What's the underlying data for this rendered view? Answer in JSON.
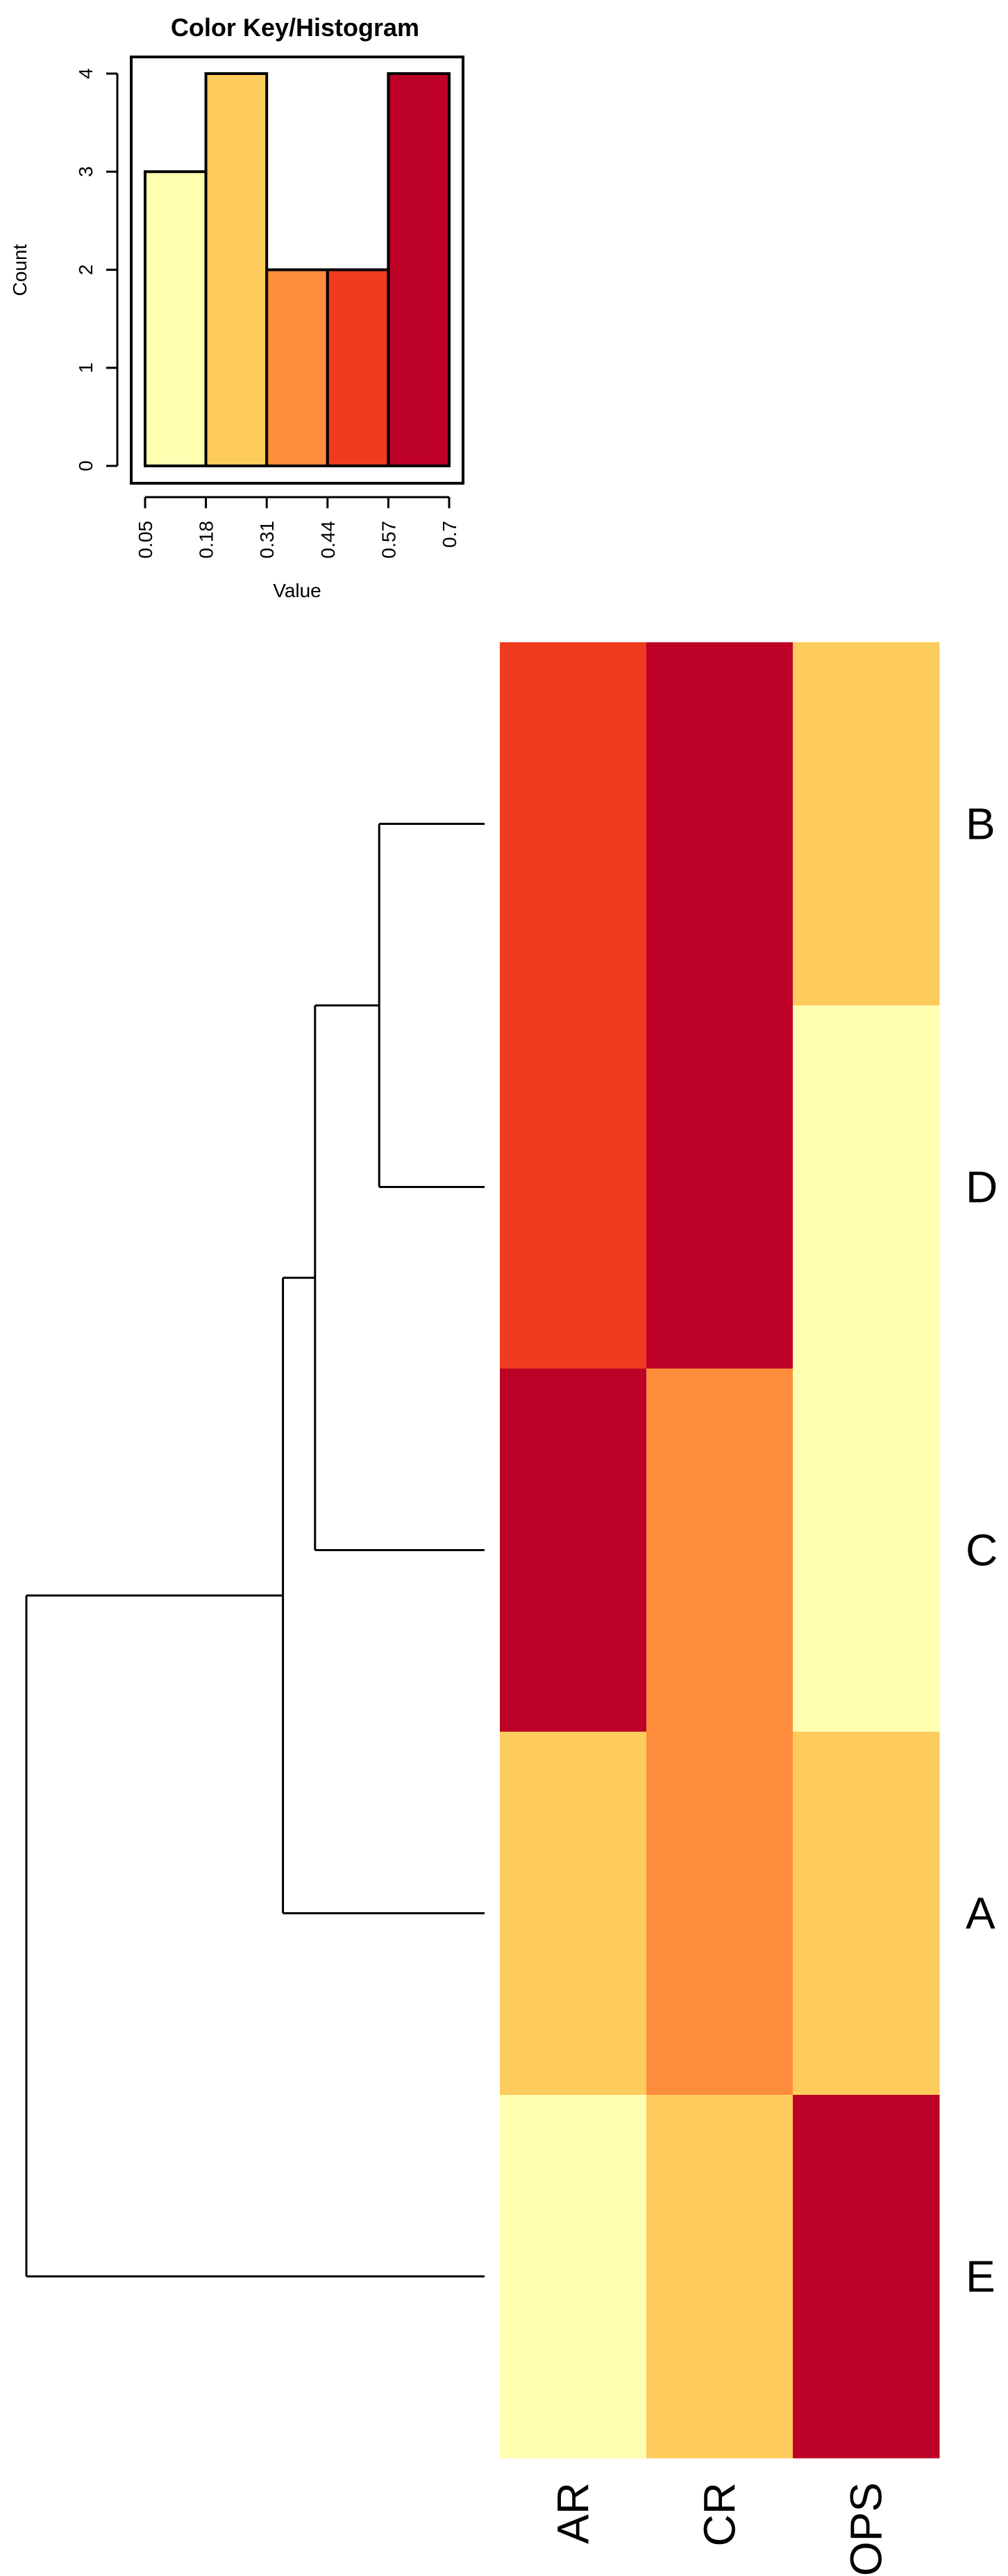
{
  "chart_data": [
    {
      "type": "histogram",
      "title": "Color Key/Histogram",
      "xlabel": "Value",
      "ylabel": "Count",
      "bin_edges": [
        0.05,
        0.18,
        0.31,
        0.44,
        0.57,
        0.7
      ],
      "x_tick_labels": [
        "0.05",
        "0.18",
        "0.31",
        "0.44",
        "0.57",
        "0.7"
      ],
      "counts": [
        3,
        4,
        2,
        2,
        4
      ],
      "bin_colors": [
        "#FFFFB2",
        "#FECC5C",
        "#FD8D3C",
        "#F03B20",
        "#BD0026"
      ],
      "ylim": [
        0,
        4
      ],
      "y_ticks": [
        0,
        1,
        2,
        3,
        4
      ],
      "y_tick_labels": [
        "0",
        "1",
        "2",
        "3",
        "4"
      ],
      "grid": false
    },
    {
      "type": "heatmap",
      "columns": [
        "AR",
        "CR",
        "OPS"
      ],
      "rows": [
        "B",
        "D",
        "C",
        "A",
        "E"
      ],
      "cell_bins": [
        [
          3,
          4,
          1
        ],
        [
          3,
          4,
          0
        ],
        [
          4,
          2,
          0
        ],
        [
          1,
          2,
          1
        ],
        [
          0,
          1,
          4
        ]
      ],
      "color_scale": [
        "#FFFFB2",
        "#FECC5C",
        "#FD8D3C",
        "#F03B20",
        "#BD0026"
      ],
      "row_dendrogram": {
        "leaves_in_order": [
          "B",
          "D",
          "C",
          "A",
          "E"
        ],
        "merges": [
          {
            "left": "B",
            "right": "D",
            "height": 0.23
          },
          {
            "left": "B+D",
            "right": "C",
            "height": 0.37
          },
          {
            "left": "B+D+C",
            "right": "A",
            "height": 0.44
          },
          {
            "left": "B+D+C+A",
            "right": "E",
            "height": 1.0
          }
        ]
      }
    }
  ]
}
